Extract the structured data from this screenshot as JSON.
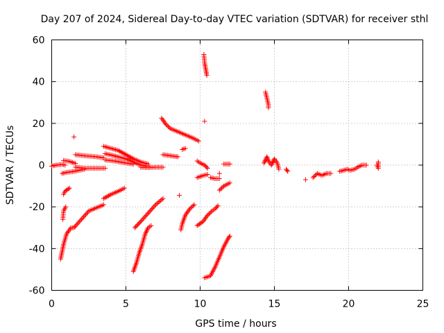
{
  "chart_data": {
    "type": "scatter",
    "title": "Day 207 of 2024, Sidereal Day-to-day VTEC variation (SDTVAR) for receiver sthl",
    "xlabel": "GPS time / hours",
    "ylabel": "SDTVAR / TECUs",
    "xlim": [
      0,
      25
    ],
    "ylim": [
      -60,
      60
    ],
    "xticks": [
      "0",
      "5",
      "10",
      "15",
      "20",
      "25"
    ],
    "yticks": [
      "-60",
      "-40",
      "-20",
      "0",
      "20",
      "40",
      "60"
    ],
    "grid": true,
    "marker": "plus",
    "color": "#ff0000",
    "tracks": [
      [
        [
          0.0,
          -0.5
        ],
        [
          0.3,
          0.0
        ],
        [
          0.7,
          0.3
        ],
        [
          0.9,
          0.0
        ]
      ],
      [
        [
          0.6,
          -45.0
        ],
        [
          0.8,
          -38.0
        ],
        [
          1.0,
          -33.0
        ],
        [
          1.3,
          -30.0
        ],
        [
          1.5,
          -30.0
        ]
      ],
      [
        [
          0.75,
          -26.0
        ],
        [
          0.8,
          -22.0
        ],
        [
          0.95,
          -20.0
        ]
      ],
      [
        [
          0.8,
          -14.0
        ],
        [
          0.9,
          -12.5
        ],
        [
          1.2,
          -11.0
        ]
      ],
      [
        [
          0.7,
          -4.0
        ],
        [
          1.0,
          -3.5
        ],
        [
          1.5,
          -3.0
        ],
        [
          2.2,
          -2.0
        ]
      ],
      [
        [
          0.8,
          2.2
        ],
        [
          1.2,
          1.8
        ],
        [
          1.6,
          0.8
        ]
      ],
      [
        [
          1.5,
          13.5
        ]
      ],
      [
        [
          1.5,
          -30.0
        ],
        [
          2.0,
          -26.0
        ],
        [
          2.5,
          -22.0
        ],
        [
          3.0,
          -20.5
        ],
        [
          3.5,
          -19.0
        ]
      ],
      [
        [
          1.6,
          -1.0
        ],
        [
          2.2,
          -1.5
        ],
        [
          3.0,
          -1.5
        ],
        [
          3.6,
          -1.5
        ]
      ],
      [
        [
          1.6,
          5.0
        ],
        [
          2.2,
          4.5
        ],
        [
          3.0,
          4.0
        ],
        [
          3.5,
          3.5
        ]
      ],
      [
        [
          3.5,
          -16.0
        ],
        [
          4.0,
          -14.0
        ],
        [
          4.5,
          -12.5
        ],
        [
          4.9,
          -11.0
        ]
      ],
      [
        [
          3.5,
          9.0
        ],
        [
          4.0,
          8.0
        ],
        [
          4.5,
          7.0
        ],
        [
          5.0,
          5.0
        ],
        [
          5.5,
          3.0
        ],
        [
          6.0,
          1.5
        ],
        [
          6.5,
          0.5
        ]
      ],
      [
        [
          3.6,
          5.5
        ],
        [
          4.2,
          4.5
        ],
        [
          5.0,
          3.0
        ],
        [
          5.5,
          1.5
        ],
        [
          6.0,
          0.0
        ],
        [
          6.5,
          -0.5
        ]
      ],
      [
        [
          3.6,
          2.5
        ],
        [
          4.2,
          2.0
        ],
        [
          5.0,
          1.0
        ],
        [
          5.5,
          0.5
        ]
      ],
      [
        [
          5.5,
          -51.0
        ],
        [
          5.7,
          -47.0
        ],
        [
          5.9,
          -42.0
        ],
        [
          6.1,
          -38.0
        ],
        [
          6.3,
          -33.0
        ],
        [
          6.5,
          -30.0
        ],
        [
          6.7,
          -29.0
        ]
      ],
      [
        [
          5.6,
          -30.0
        ],
        [
          6.0,
          -27.0
        ],
        [
          6.5,
          -23.0
        ],
        [
          7.0,
          -19.0
        ],
        [
          7.5,
          -16.0
        ]
      ],
      [
        [
          6.0,
          -1.0
        ],
        [
          6.5,
          -1.2
        ],
        [
          7.0,
          -1.0
        ],
        [
          7.5,
          -1.0
        ]
      ],
      [
        [
          7.4,
          22.5
        ],
        [
          7.7,
          19.5
        ],
        [
          8.0,
          17.5
        ],
        [
          8.5,
          16.0
        ],
        [
          9.0,
          14.5
        ],
        [
          9.5,
          13.0
        ],
        [
          9.9,
          11.5
        ]
      ],
      [
        [
          7.5,
          5.0
        ],
        [
          8.0,
          4.5
        ],
        [
          8.5,
          4.0
        ]
      ],
      [
        [
          8.6,
          -14.5
        ]
      ],
      [
        [
          8.7,
          -31.0
        ],
        [
          8.8,
          -28.0
        ],
        [
          9.0,
          -24.0
        ],
        [
          9.3,
          -21.0
        ],
        [
          9.6,
          -19.0
        ]
      ],
      [
        [
          8.8,
          7.5
        ],
        [
          9.0,
          8.0
        ]
      ],
      [
        [
          9.8,
          -29.0
        ],
        [
          10.2,
          -27.0
        ],
        [
          10.5,
          -24.0
        ],
        [
          10.8,
          -22.0
        ],
        [
          11.0,
          -21.0
        ],
        [
          11.2,
          -19.5
        ]
      ],
      [
        [
          9.8,
          -6.0
        ],
        [
          10.2,
          -5.0
        ],
        [
          10.5,
          -4.5
        ]
      ],
      [
        [
          9.8,
          2.0
        ],
        [
          10.0,
          1.0
        ],
        [
          10.3,
          0.0
        ],
        [
          10.5,
          -1.5
        ]
      ],
      [
        [
          10.25,
          53.0
        ],
        [
          10.3,
          49.0
        ],
        [
          10.4,
          45.0
        ],
        [
          10.45,
          43.0
        ]
      ],
      [
        [
          10.3,
          21.0
        ]
      ],
      [
        [
          10.3,
          -54.0
        ],
        [
          10.7,
          -53.0
        ],
        [
          11.0,
          -49.0
        ],
        [
          11.3,
          -44.0
        ],
        [
          11.6,
          -39.0
        ],
        [
          11.9,
          -35.0
        ],
        [
          12.0,
          -34.0
        ]
      ],
      [
        [
          10.7,
          -6.0
        ],
        [
          11.0,
          -6.5
        ],
        [
          11.3,
          -6.5
        ]
      ],
      [
        [
          11.3,
          -4.0
        ]
      ],
      [
        [
          11.3,
          -12.0
        ],
        [
          11.6,
          -10.0
        ],
        [
          12.0,
          -8.5
        ]
      ],
      [
        [
          11.6,
          0.5
        ],
        [
          11.8,
          0.5
        ],
        [
          12.0,
          0.5
        ]
      ],
      [
        [
          14.4,
          35.0
        ],
        [
          14.5,
          32.0
        ],
        [
          14.6,
          29.0
        ],
        [
          14.6,
          27.5
        ]
      ],
      [
        [
          14.3,
          1.0
        ],
        [
          14.5,
          4.0
        ],
        [
          14.6,
          2.0
        ],
        [
          14.8,
          0.0
        ],
        [
          15.0,
          3.0
        ],
        [
          15.2,
          1.0
        ],
        [
          15.3,
          -2.0
        ]
      ],
      [
        [
          15.8,
          -2.0
        ],
        [
          15.9,
          -3.0
        ]
      ],
      [
        [
          17.1,
          -7.0
        ]
      ],
      [
        [
          17.6,
          -6.0
        ],
        [
          17.9,
          -4.0
        ],
        [
          18.2,
          -5.0
        ],
        [
          18.5,
          -4.0
        ],
        [
          18.8,
          -4.0
        ]
      ],
      [
        [
          19.4,
          -3.0
        ],
        [
          19.9,
          -2.0
        ],
        [
          20.1,
          -2.5
        ],
        [
          20.4,
          -2.0
        ],
        [
          20.6,
          -1.0
        ],
        [
          20.9,
          0.0
        ],
        [
          21.2,
          0.0
        ]
      ],
      [
        [
          21.9,
          0.0
        ],
        [
          22.0,
          -1.5
        ],
        [
          22.0,
          1.5
        ]
      ]
    ]
  }
}
